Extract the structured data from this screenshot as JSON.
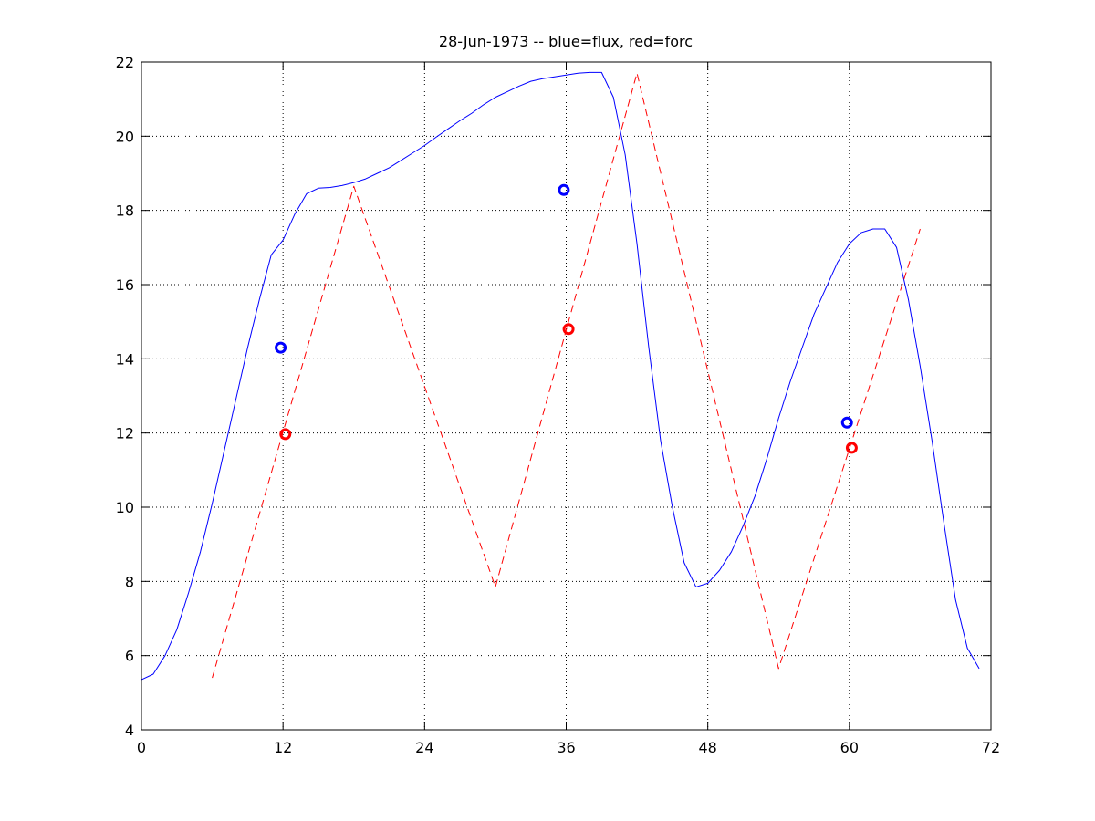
{
  "chart_data": {
    "type": "line",
    "title": "28-Jun-1973 -- blue=flux, red=forc",
    "xlim": [
      0,
      72
    ],
    "ylim": [
      4,
      22
    ],
    "xticks": [
      0,
      12,
      24,
      36,
      48,
      60,
      72
    ],
    "yticks": [
      4,
      6,
      8,
      10,
      12,
      14,
      16,
      18,
      20,
      22
    ],
    "grid": true,
    "series": [
      {
        "color": "#0000ff",
        "style": "solid",
        "x": [
          0,
          1,
          2,
          3,
          4,
          5,
          6,
          7,
          8,
          9,
          10,
          11,
          12,
          13,
          14,
          15,
          16,
          17,
          18,
          19,
          20,
          21,
          22,
          23,
          24,
          25,
          26,
          27,
          28,
          29,
          30,
          31,
          32,
          33,
          34,
          35,
          36,
          37,
          38,
          39,
          40,
          41,
          42,
          43,
          44,
          45,
          46,
          47,
          48,
          49,
          50,
          51,
          52,
          53,
          54,
          55,
          56,
          57,
          58,
          59,
          60,
          61,
          62,
          63,
          64,
          65,
          66,
          67,
          68,
          69,
          70,
          71
        ],
        "y": [
          5.35,
          5.5,
          6.0,
          6.7,
          7.7,
          8.8,
          10.1,
          11.5,
          12.9,
          14.3,
          15.6,
          16.8,
          17.2,
          17.9,
          18.45,
          18.6,
          18.62,
          18.67,
          18.75,
          18.85,
          19.0,
          19.15,
          19.35,
          19.55,
          19.75,
          19.98,
          20.2,
          20.42,
          20.62,
          20.85,
          21.05,
          21.2,
          21.35,
          21.48,
          21.55,
          21.6,
          21.65,
          21.7,
          21.72,
          21.72,
          21.05,
          19.5,
          17.1,
          14.3,
          11.8,
          10.0,
          8.5,
          7.85,
          7.95,
          8.3,
          8.8,
          9.5,
          10.3,
          11.3,
          12.4,
          13.4,
          14.3,
          15.2,
          15.9,
          16.6,
          17.1,
          17.4,
          17.5,
          17.5,
          17.0,
          15.6,
          13.8,
          11.8,
          9.6,
          7.5,
          6.2,
          5.65
        ]
      },
      {
        "color": "#ff0000",
        "style": "dashed",
        "x": [
          6,
          18,
          30,
          42,
          54,
          66
        ],
        "y": [
          5.4,
          18.65,
          7.85,
          21.7,
          5.65,
          17.5
        ]
      }
    ],
    "markers": [
      {
        "color": "#0000ff",
        "x": 11.8,
        "y": 14.3
      },
      {
        "color": "#ff0000",
        "x": 12.2,
        "y": 11.97
      },
      {
        "color": "#0000ff",
        "x": 35.8,
        "y": 18.55
      },
      {
        "color": "#ff0000",
        "x": 36.2,
        "y": 14.8
      },
      {
        "color": "#0000ff",
        "x": 59.8,
        "y": 12.28
      },
      {
        "color": "#ff0000",
        "x": 60.2,
        "y": 11.6
      }
    ]
  }
}
